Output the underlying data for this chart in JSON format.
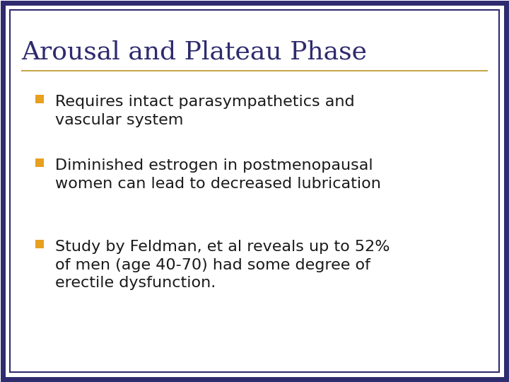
{
  "title": "Arousal and Plateau Phase",
  "title_color": "#2E2B6E",
  "title_fontsize": 26,
  "separator_color": "#C8A84B",
  "bullet_color": "#E8A020",
  "text_color": "#1a1a1a",
  "bullet_fontsize": 16,
  "background_color": "#FFFFFF",
  "outer_border_color": "#2E2B6E",
  "inner_border_color": "#2E2B6E",
  "bullets": [
    "Requires intact parasympathetics and\nvascular system",
    "Diminished estrogen in postmenopausal\nwomen can lead to decreased lubrication",
    "Study by Feldman, et al reveals up to 52%\nof men (age 40-70) had some degree of\nerectile dysfunction."
  ]
}
